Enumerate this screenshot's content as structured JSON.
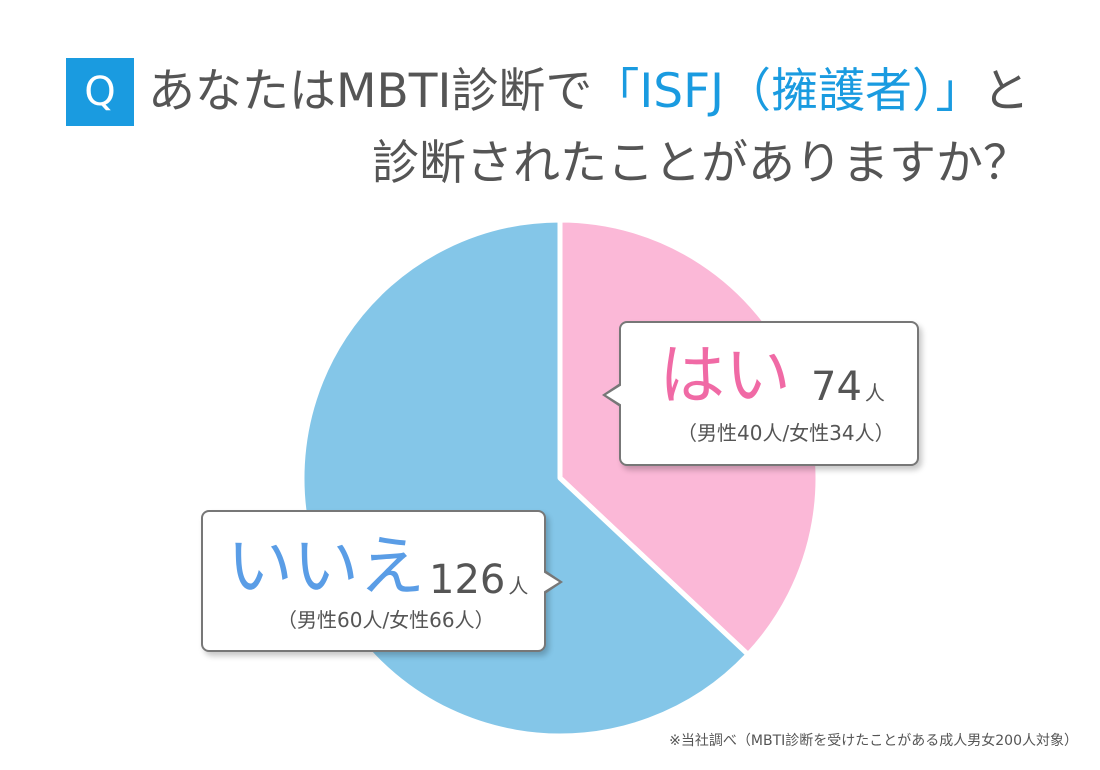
{
  "question": {
    "badge": "Q",
    "line1_before": "あなたはMBTI診断で",
    "line1_highlight": "「ISFJ（擁護者）」",
    "line1_after": "と",
    "line2": "診断されたことがありますか？"
  },
  "chart_data": {
    "type": "pie",
    "start": "12 o'clock, clockwise",
    "slices": [
      {
        "label": "はい",
        "value": 74,
        "unit": "人",
        "breakdown": "（男性40人/女性34人）",
        "color": "#fbb8d7"
      },
      {
        "label": "いいえ",
        "value": 126,
        "unit": "人",
        "breakdown": "（男性60人/女性66人）",
        "color": "#84c6e8"
      }
    ]
  },
  "colors": {
    "accent": "#1a9be0",
    "yes_label": "#f06aa5",
    "no_label": "#5a9de6",
    "text": "#555555"
  },
  "footnote": "※当社調べ（MBTI診断を受けたことがある成人男女200人対象）"
}
